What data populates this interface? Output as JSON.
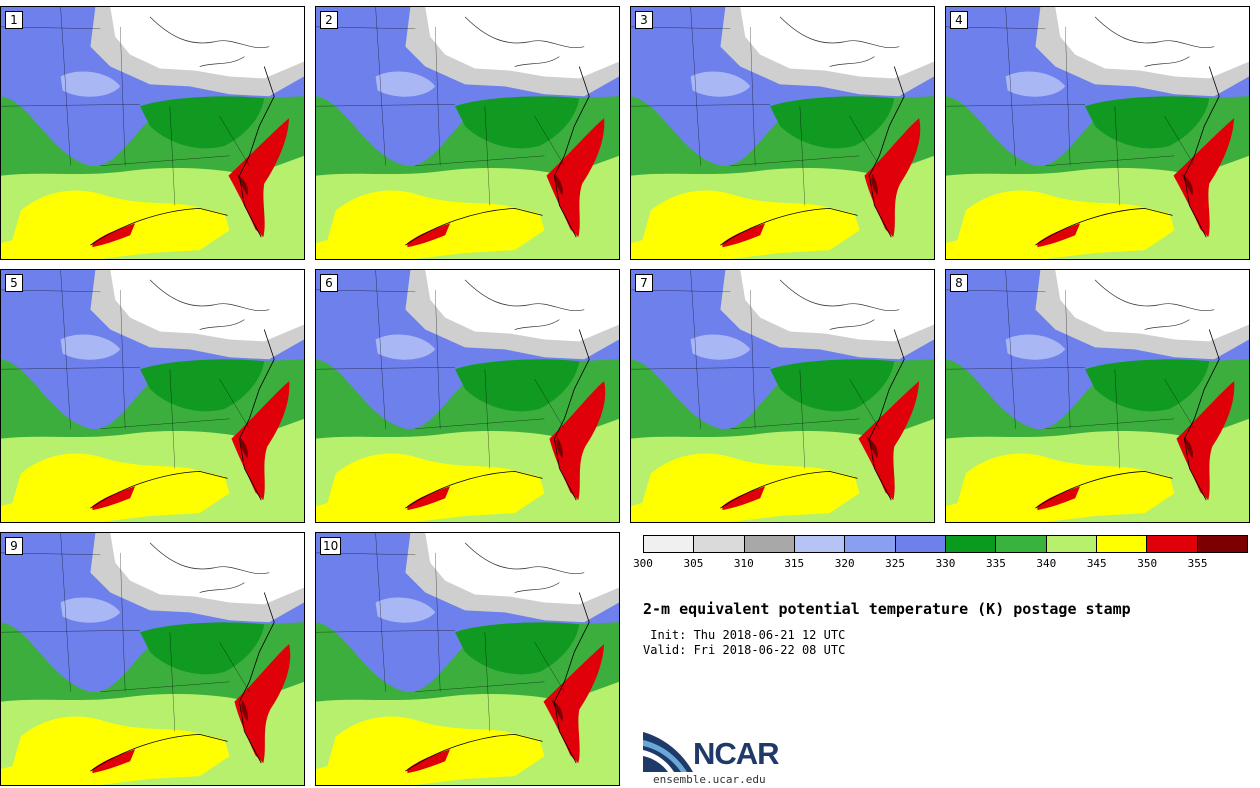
{
  "figure": {
    "title": "2-m equivalent potential temperature (K) postage stamp",
    "init": " Init: Thu 2018-06-21 12 UTC",
    "valid": "Valid: Fri 2018-06-22 08 UTC"
  },
  "members": [
    "1",
    "2",
    "3",
    "4",
    "5",
    "6",
    "7",
    "8",
    "9",
    "10"
  ],
  "colorbar": {
    "ticks": [
      "300",
      "305",
      "310",
      "315",
      "320",
      "325",
      "330",
      "335",
      "340",
      "345",
      "350",
      "355"
    ],
    "colors": [
      "#f0f0f0",
      "#dadada",
      "#a8a8a8",
      "#b5c4f5",
      "#8a9ef2",
      "#6d80eb",
      "#0a9a1e",
      "#3ab33e",
      "#b6f06c",
      "#ffff00",
      "#e0000a",
      "#7d0000"
    ]
  },
  "palette": {
    "ocean": "#7e90ee",
    "cold_north": "#ffffff",
    "grey_band": "#cfcfcf",
    "blue_light": "#a9b8f5",
    "blue": "#6d80eb",
    "green_dark": "#119a22",
    "green": "#3cae3e",
    "green_light": "#b6f06c",
    "yellow": "#ffff00",
    "red": "#e0000a",
    "dark_red": "#7d0000"
  },
  "logo": {
    "name": "NCAR",
    "url": "ensemble.ucar.edu"
  }
}
